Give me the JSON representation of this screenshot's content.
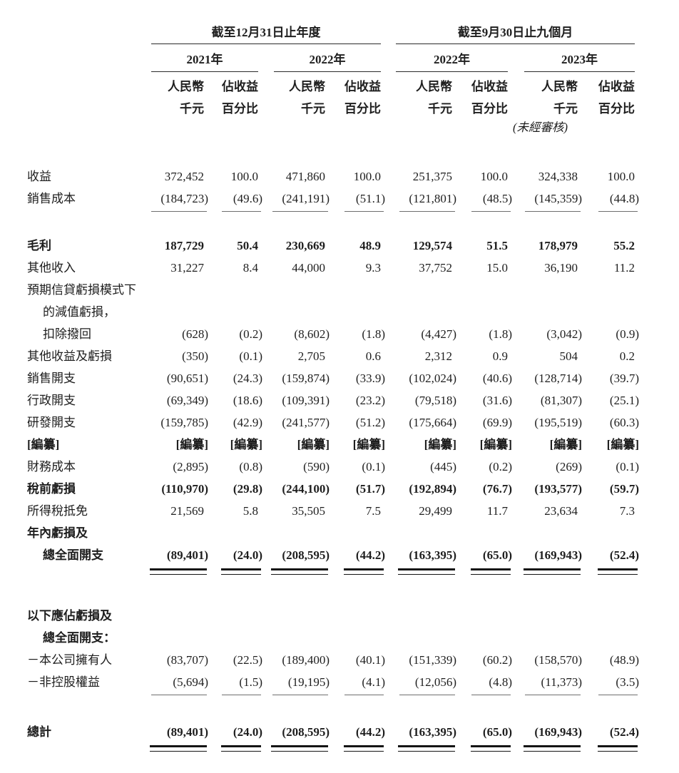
{
  "header": {
    "groups": [
      {
        "title": "截至12月31日止年度",
        "years": [
          {
            "label": "2021年"
          },
          {
            "label": "2022年"
          }
        ]
      },
      {
        "title": "截至9月30日止九個月",
        "years": [
          {
            "label": "2022年"
          },
          {
            "label": "2023年"
          }
        ]
      }
    ],
    "amount_unit": {
      "line1": "人民幣",
      "line2": "千元"
    },
    "percent_unit": {
      "line1": "佔收益",
      "line2": "百分比"
    },
    "unaudited_note": "(未經審核)"
  },
  "table": {
    "rows": [
      {
        "label": "收益",
        "indent": 0,
        "bold": false,
        "gap_before": 0,
        "rule_after": "none",
        "values": [
          "372,452",
          "100.0",
          "471,860",
          "100.0",
          "251,375",
          "100.0",
          "324,338",
          "100.0"
        ]
      },
      {
        "label": "銷售成本",
        "indent": 0,
        "bold": false,
        "gap_before": 0,
        "rule_after": "single",
        "values": [
          "(184,723)",
          "(49.6)",
          "(241,191)",
          "(51.1)",
          "(121,801)",
          "(48.5)",
          "(145,359)",
          "(44.8)"
        ]
      },
      {
        "label": "毛利",
        "indent": 0,
        "bold": true,
        "gap_before": 26,
        "rule_after": "none",
        "values": [
          "187,729",
          "50.4",
          "230,669",
          "48.9",
          "129,574",
          "51.5",
          "178,979",
          "55.2"
        ]
      },
      {
        "label": "其他收入",
        "indent": 0,
        "bold": false,
        "gap_before": 0,
        "rule_after": "none",
        "values": [
          "31,227",
          "8.4",
          "44,000",
          "9.3",
          "37,752",
          "15.0",
          "36,190",
          "11.2"
        ]
      },
      {
        "label": "預期信貸虧損模式下",
        "indent": 0,
        "bold": false,
        "gap_before": 0,
        "rule_after": "none",
        "values": []
      },
      {
        "label": "的減值虧損，",
        "indent": 1,
        "bold": false,
        "gap_before": 0,
        "rule_after": "none",
        "values": []
      },
      {
        "label": "扣除撥回",
        "indent": 1,
        "bold": false,
        "gap_before": 0,
        "rule_after": "none",
        "values": [
          "(628)",
          "(0.2)",
          "(8,602)",
          "(1.8)",
          "(4,427)",
          "(1.8)",
          "(3,042)",
          "(0.9)"
        ]
      },
      {
        "label": "其他收益及虧損",
        "indent": 0,
        "bold": false,
        "gap_before": 0,
        "rule_after": "none",
        "values": [
          "(350)",
          "(0.1)",
          "2,705",
          "0.6",
          "2,312",
          "0.9",
          "504",
          "0.2"
        ]
      },
      {
        "label": "銷售開支",
        "indent": 0,
        "bold": false,
        "gap_before": 0,
        "rule_after": "none",
        "values": [
          "(90,651)",
          "(24.3)",
          "(159,874)",
          "(33.9)",
          "(102,024)",
          "(40.6)",
          "(128,714)",
          "(39.7)"
        ]
      },
      {
        "label": "行政開支",
        "indent": 0,
        "bold": false,
        "gap_before": 0,
        "rule_after": "none",
        "values": [
          "(69,349)",
          "(18.6)",
          "(109,391)",
          "(23.2)",
          "(79,518)",
          "(31.6)",
          "(81,307)",
          "(25.1)"
        ]
      },
      {
        "label": "研發開支",
        "indent": 0,
        "bold": false,
        "gap_before": 0,
        "rule_after": "none",
        "values": [
          "(159,785)",
          "(42.9)",
          "(241,577)",
          "(51.2)",
          "(175,664)",
          "(69.9)",
          "(195,519)",
          "(60.3)"
        ]
      },
      {
        "label": "[編纂]",
        "indent": 0,
        "bold": true,
        "gap_before": 0,
        "rule_after": "none",
        "values": [
          "[編纂]",
          "[編纂]",
          "[編纂]",
          "[編纂]",
          "[編纂]",
          "[編纂]",
          "[編纂]",
          "[編纂]"
        ]
      },
      {
        "label": "財務成本",
        "indent": 0,
        "bold": false,
        "gap_before": 0,
        "rule_after": "none",
        "values": [
          "(2,895)",
          "(0.8)",
          "(590)",
          "(0.1)",
          "(445)",
          "(0.2)",
          "(269)",
          "(0.1)"
        ]
      },
      {
        "label": "稅前虧損",
        "indent": 0,
        "bold": true,
        "gap_before": 0,
        "rule_after": "none",
        "values": [
          "(110,970)",
          "(29.8)",
          "(244,100)",
          "(51.7)",
          "(192,894)",
          "(76.7)",
          "(193,577)",
          "(59.7)"
        ]
      },
      {
        "label": "所得稅抵免",
        "indent": 0,
        "bold": false,
        "gap_before": 0,
        "rule_after": "none",
        "values": [
          "21,569",
          "5.8",
          "35,505",
          "7.5",
          "29,499",
          "11.7",
          "23,634",
          "7.3"
        ]
      },
      {
        "label": "年內虧損及",
        "indent": 0,
        "bold": true,
        "gap_before": 0,
        "rule_after": "none",
        "values": []
      },
      {
        "label": "總全面開支",
        "indent": 1,
        "bold": true,
        "gap_before": 0,
        "rule_after": "double",
        "values": [
          "(89,401)",
          "(24.0)",
          "(208,595)",
          "(44.2)",
          "(163,395)",
          "(65.0)",
          "(169,943)",
          "(52.4)"
        ]
      },
      {
        "label": "以下應佔虧損及",
        "indent": 0,
        "bold": true,
        "gap_before": 38,
        "rule_after": "none",
        "values": []
      },
      {
        "label": "總全面開支：",
        "indent": 1,
        "bold": true,
        "gap_before": 0,
        "rule_after": "none",
        "values": []
      },
      {
        "label": "－本公司擁有人",
        "indent": 0,
        "bold": false,
        "gap_before": 0,
        "rule_after": "none",
        "values": [
          "(83,707)",
          "(22.5)",
          "(189,400)",
          "(40.1)",
          "(151,339)",
          "(60.2)",
          "(158,570)",
          "(48.9)"
        ]
      },
      {
        "label": "－非控股權益",
        "indent": 0,
        "bold": false,
        "gap_before": 0,
        "rule_after": "single",
        "values": [
          "(5,694)",
          "(1.5)",
          "(19,195)",
          "(4.1)",
          "(12,056)",
          "(4.8)",
          "(11,373)",
          "(3.5)"
        ]
      },
      {
        "label": "總計",
        "indent": 0,
        "bold": true,
        "gap_before": 30,
        "rule_after": "double",
        "values": [
          "(89,401)",
          "(24.0)",
          "(208,595)",
          "(44.2)",
          "(163,395)",
          "(65.0)",
          "(169,943)",
          "(52.4)"
        ]
      }
    ]
  }
}
